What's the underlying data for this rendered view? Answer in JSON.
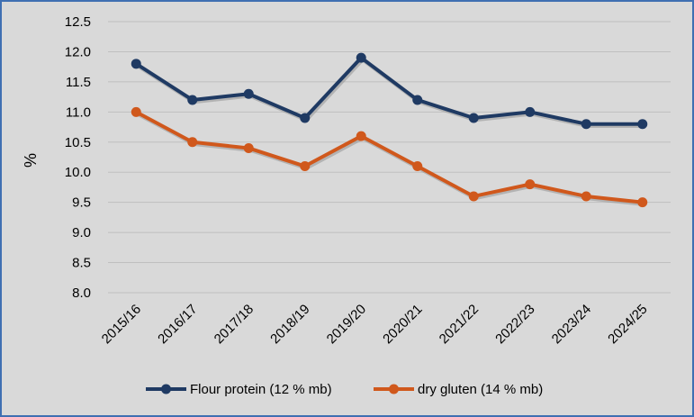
{
  "chart_data": {
    "type": "line",
    "title": "",
    "xlabel": "",
    "ylabel": "%",
    "ylim": [
      8.0,
      12.5
    ],
    "yticks": [
      "8.0",
      "8.5",
      "9.0",
      "9.5",
      "10.0",
      "10.5",
      "11.0",
      "11.5",
      "12.0",
      "12.5"
    ],
    "categories": [
      "2015/16",
      "2016/17",
      "2017/18",
      "2018/19",
      "2019/20",
      "2020/21",
      "2021/22",
      "2022/23",
      "2023/24",
      "2024/25"
    ],
    "grid": true,
    "legend_position": "bottom",
    "series": [
      {
        "name": "Flour protein (12 % mb)",
        "color": "#1f3a63",
        "values": [
          11.8,
          11.2,
          11.3,
          10.9,
          11.9,
          11.2,
          10.9,
          11.0,
          10.8,
          10.8
        ]
      },
      {
        "name": "dry gluten (14 % mb)",
        "color": "#d0581c",
        "values": [
          11.0,
          10.5,
          10.4,
          10.1,
          10.6,
          10.1,
          9.6,
          9.8,
          9.6,
          9.5
        ]
      }
    ]
  }
}
